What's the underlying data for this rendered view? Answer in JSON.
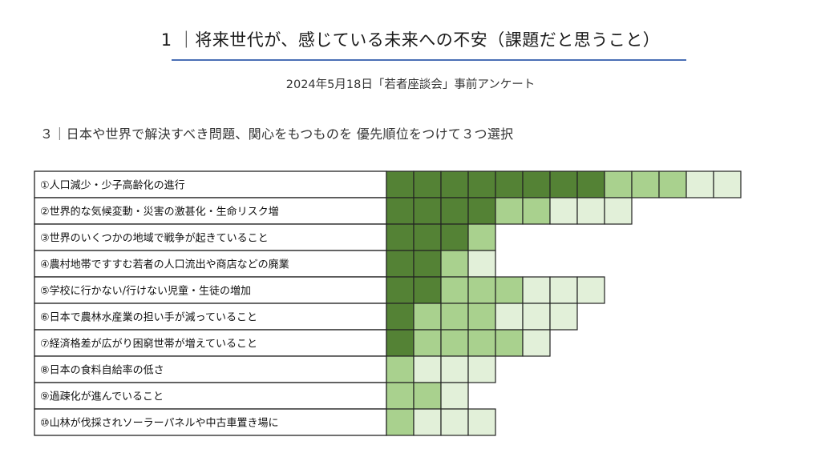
{
  "header": {
    "title": "1 ｜将来世代が、感じている未来への不安（課題だと思うこと）",
    "subtitle": "2024年5月18日「若者座談会」事前アンケート",
    "question": "３｜日本や世界で解決すべき問題、関心をもつものを 優先順位をつけて３つ選択"
  },
  "colors": {
    "rank1": "#548235",
    "rank2": "#a9d18e",
    "rank3": "#e2f0d9",
    "border": "#222222"
  },
  "chart_data": {
    "type": "bar",
    "orientation": "horizontal-unit-cells",
    "categories": [
      "①人口減少・少子高齢化の進行",
      "②世界的な気候変動・災害の激甚化・生命リスク増",
      "③世界のいくつかの地域で戦争が起きていること",
      "④農村地帯ですすむ若者の人口流出や商店などの廃業",
      "⑤学校に行かない/行けない児童・生徒の増加",
      "⑥日本で農林水産業の担い手が減っていること",
      "⑦経済格差が広がり困窮世帯が増えていること",
      "⑧日本の食料自給率の低さ",
      "⑨過疎化が進んでいること",
      "⑩山林が伐採されソーラーパネルや中古車置き場に"
    ],
    "series": [
      {
        "values": [
          8,
          4,
          3,
          2,
          2,
          1,
          1,
          0,
          0,
          0
        ]
      },
      {
        "values": [
          3,
          2,
          1,
          1,
          3,
          3,
          4,
          1,
          2,
          1
        ]
      },
      {
        "values": [
          2,
          3,
          0,
          1,
          3,
          3,
          1,
          3,
          1,
          3
        ]
      }
    ],
    "stacked": true
  }
}
